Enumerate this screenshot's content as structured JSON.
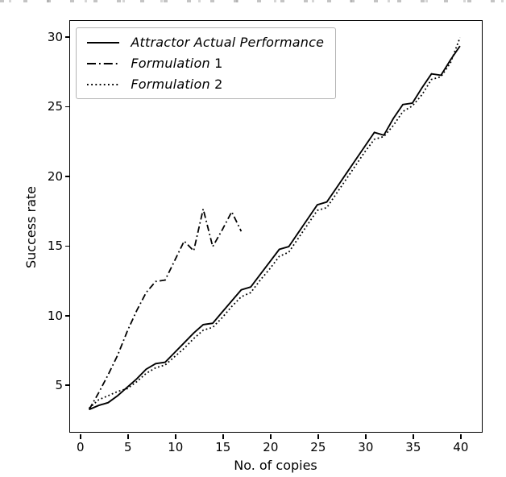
{
  "figure": {
    "x_axis_label": "No. of copies",
    "y_axis_label": "Success rate",
    "line_color": "#000000",
    "background_color": "#ffffff",
    "legend_border_color": "#b4b4b4"
  },
  "legend": {
    "items": [
      {
        "label": "Attractor Actual Performance",
        "style": "solid"
      },
      {
        "label": "Formulation 1",
        "style": "dashdot"
      },
      {
        "label": "Formulation 2",
        "style": "dotted"
      }
    ]
  },
  "chart_data": {
    "type": "line",
    "title": "",
    "xlabel": "No. of copies",
    "ylabel": "Success rate",
    "x_ticks": [
      0,
      5,
      10,
      15,
      20,
      25,
      30,
      35,
      40
    ],
    "y_ticks": [
      5,
      10,
      15,
      20,
      25,
      30
    ],
    "xlim": [
      -1.0,
      42.3
    ],
    "ylim": [
      1.6,
      31.1
    ],
    "grid": false,
    "legend_position": "upper left",
    "series": [
      {
        "name": "Attractor Actual Performance",
        "line_style": "solid",
        "color": "#000000",
        "x": [
          1,
          2,
          3,
          4,
          5,
          6,
          7,
          8,
          9,
          10,
          11,
          12,
          13,
          14,
          15,
          16,
          17,
          18,
          19,
          20,
          21,
          22,
          23,
          24,
          25,
          26,
          27,
          28,
          29,
          30,
          31,
          32,
          33,
          34,
          35,
          36,
          37,
          38,
          39,
          40
        ],
        "y": [
          3.2,
          3.5,
          3.7,
          4.2,
          4.8,
          5.4,
          6.1,
          6.5,
          6.6,
          7.3,
          8.0,
          8.7,
          9.3,
          9.4,
          10.2,
          11.0,
          11.8,
          12.0,
          12.9,
          13.8,
          14.7,
          14.9,
          15.9,
          16.9,
          17.9,
          18.1,
          19.1,
          20.1,
          21.1,
          22.1,
          23.1,
          22.9,
          24.1,
          25.1,
          25.2,
          26.3,
          27.3,
          27.2,
          28.3,
          29.3
        ]
      },
      {
        "name": "Formulation 1",
        "line_style": "dashdot",
        "color": "#000000",
        "x": [
          1,
          2,
          3,
          4,
          5,
          6,
          7,
          8,
          9,
          10,
          11,
          12,
          13,
          14,
          15,
          16,
          17
        ],
        "y": [
          3.2,
          4.4,
          5.7,
          7.1,
          8.8,
          10.3,
          11.6,
          12.4,
          12.5,
          13.9,
          15.3,
          14.6,
          17.6,
          14.9,
          16.1,
          17.4,
          16.0
        ]
      },
      {
        "name": "Formulation 2",
        "line_style": "dotted",
        "color": "#000000",
        "x": [
          1,
          2,
          3,
          4,
          5,
          6,
          7,
          8,
          9,
          10,
          11,
          12,
          13,
          14,
          15,
          16,
          17,
          18,
          19,
          20,
          21,
          22,
          23,
          24,
          25,
          26,
          27,
          28,
          29,
          30,
          31,
          32,
          33,
          34,
          35,
          36,
          37,
          38,
          39,
          40
        ],
        "y": [
          3.3,
          3.9,
          4.2,
          4.5,
          4.7,
          5.2,
          5.8,
          6.2,
          6.4,
          7.0,
          7.6,
          8.3,
          8.9,
          9.1,
          9.8,
          10.6,
          11.3,
          11.6,
          12.5,
          13.3,
          14.2,
          14.5,
          15.5,
          16.5,
          17.5,
          17.7,
          18.7,
          19.7,
          20.7,
          21.7,
          22.6,
          22.8,
          23.6,
          24.6,
          25.0,
          25.8,
          26.9,
          27.1,
          28.1,
          29.9
        ]
      }
    ]
  }
}
